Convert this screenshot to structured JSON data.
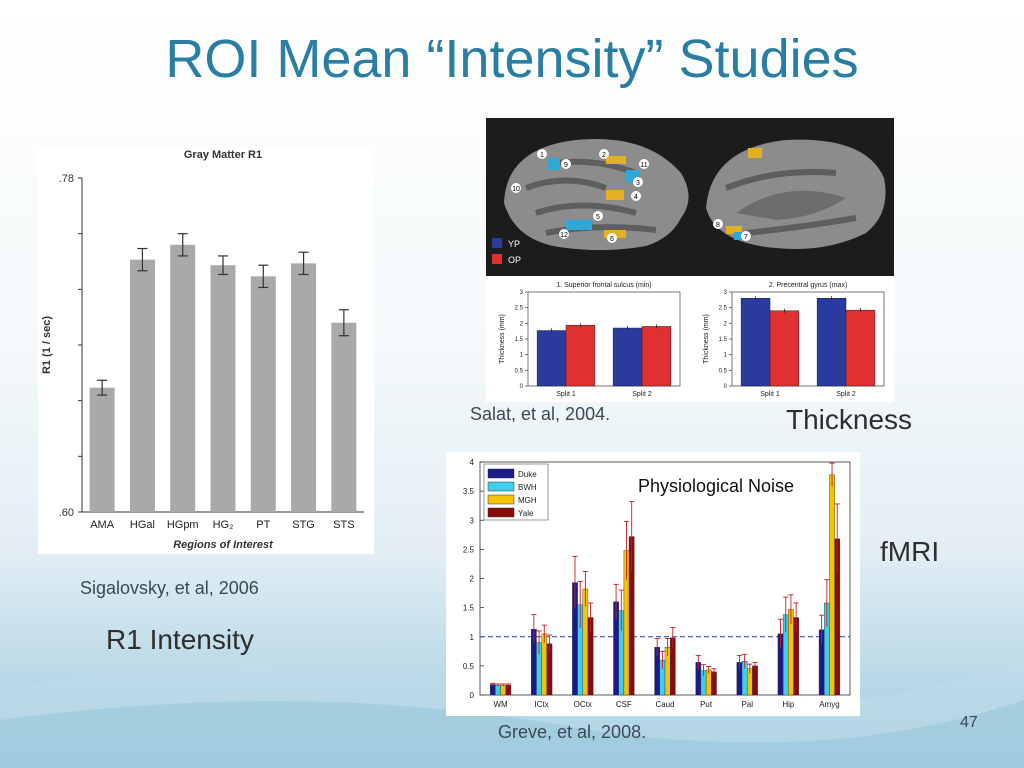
{
  "slide": {
    "title": "ROI Mean “Intensity” Studies",
    "page_number": "47",
    "captions": {
      "sigalovsky": "Sigalovsky, et al, 2006",
      "r1": "R1 Intensity",
      "salat": "Salat, et al, 2004.",
      "thickness": "Thickness",
      "greve": "Greve, et al, 2008.",
      "fmri": "fMRI"
    },
    "accent_color": "#2a7ea3"
  },
  "brain": {
    "labels": [
      "1",
      "2",
      "3",
      "4",
      "5",
      "6",
      "7",
      "8",
      "9",
      "10",
      "11",
      "12"
    ],
    "legend": [
      {
        "label": "YP",
        "color": "#2b3a9e"
      },
      {
        "label": "OP",
        "color": "#e03030"
      }
    ]
  },
  "chart_data": [
    {
      "type": "bar",
      "title": "Gray Matter R1",
      "xlabel": "Regions of Interest",
      "ylabel": "R1 (1 / sec)",
      "ylim": [
        0.6,
        0.78
      ],
      "ytick_labels": [
        ".78",
        ".60"
      ],
      "categories": [
        "AMA",
        "HGal",
        "HGpm",
        "HG₂",
        "PT",
        "STG",
        "STS"
      ],
      "values": [
        0.667,
        0.736,
        0.744,
        0.733,
        0.727,
        0.734,
        0.702
      ],
      "errors": [
        0.004,
        0.006,
        0.006,
        0.005,
        0.006,
        0.006,
        0.007
      ],
      "bar_color": "#a9a9a9"
    },
    {
      "type": "bar",
      "title": "1. Superior frontal sulcus (min)",
      "ylabel": "Thickness (mm)",
      "ylim": [
        0,
        3
      ],
      "yticks": [
        "0",
        "0.5",
        "1",
        "1.5",
        "2",
        "2.5",
        "3"
      ],
      "categories": [
        "Split 1",
        "Split 2"
      ],
      "series": [
        {
          "name": "YP",
          "values": [
            1.77,
            1.85
          ],
          "color": "#2b3a9e"
        },
        {
          "name": "OP",
          "values": [
            1.94,
            1.9
          ],
          "color": "#e03030"
        }
      ]
    },
    {
      "type": "bar",
      "title": "2. Precentral gyrus (max)",
      "ylabel": "Thickness (mm)",
      "ylim": [
        0,
        3
      ],
      "yticks": [
        "0",
        "0.5",
        "1",
        "1.5",
        "2",
        "2.5",
        "3"
      ],
      "categories": [
        "Split 1",
        "Split 2"
      ],
      "series": [
        {
          "name": "YP",
          "values": [
            2.8,
            2.8
          ],
          "color": "#2b3a9e"
        },
        {
          "name": "OP",
          "values": [
            2.4,
            2.42
          ],
          "color": "#e03030"
        }
      ]
    },
    {
      "type": "bar",
      "title": "Physiological Noise",
      "ylim": [
        0,
        4
      ],
      "yticks": [
        "0",
        "0.5",
        "1",
        "1.5",
        "2",
        "2.5",
        "3",
        "3.5",
        "4"
      ],
      "categories": [
        "WM",
        "ICtx",
        "OCtx",
        "CSF",
        "Caud",
        "Put",
        "Pal",
        "Hip",
        "Amyg"
      ],
      "reference_line": 1,
      "series": [
        {
          "name": "Duke",
          "color": "#1a1a8c",
          "values": [
            0.18,
            1.13,
            1.93,
            1.6,
            0.82,
            0.56,
            0.56,
            1.05,
            1.12
          ],
          "errors": [
            0.02,
            0.25,
            0.45,
            0.3,
            0.15,
            0.12,
            0.12,
            0.25,
            0.25
          ]
        },
        {
          "name": "BWH",
          "color": "#3ecfee",
          "values": [
            0.17,
            0.9,
            1.55,
            1.45,
            0.6,
            0.42,
            0.58,
            1.38,
            1.58
          ],
          "errors": [
            0.02,
            0.2,
            0.4,
            0.35,
            0.15,
            0.1,
            0.12,
            0.3,
            0.4
          ]
        },
        {
          "name": "MGH",
          "color": "#f5c400",
          "values": [
            0.17,
            1.05,
            1.82,
            2.48,
            0.82,
            0.43,
            0.45,
            1.47,
            3.78
          ],
          "errors": [
            0.02,
            0.15,
            0.3,
            0.5,
            0.15,
            0.06,
            0.08,
            0.25,
            0.2
          ]
        },
        {
          "name": "Yale",
          "color": "#8a0a0a",
          "values": [
            0.17,
            0.88,
            1.33,
            2.72,
            0.98,
            0.4,
            0.5,
            1.33,
            2.68
          ],
          "errors": [
            0.02,
            0.15,
            0.25,
            0.6,
            0.18,
            0.05,
            0.06,
            0.25,
            0.6
          ]
        }
      ]
    }
  ]
}
